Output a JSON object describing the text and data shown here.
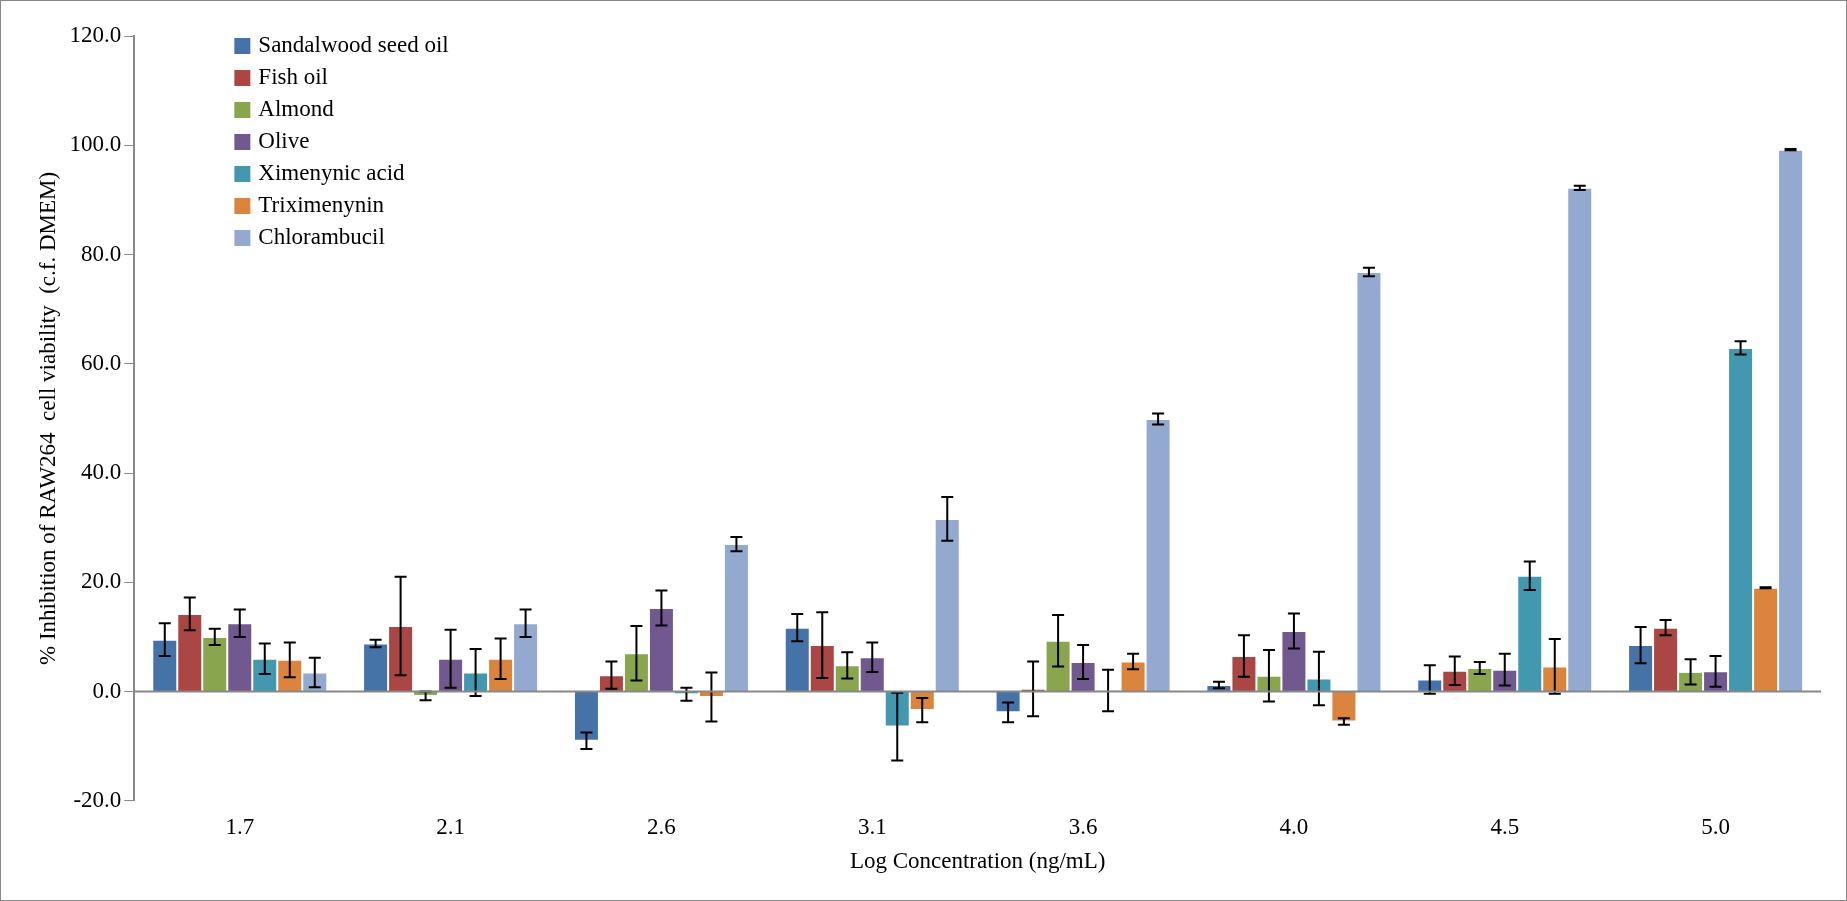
{
  "chart_data": {
    "type": "bar",
    "xlabel": "Log Concentration (ng/mL)",
    "ylabel": "% Inhibition of RAW264  cell viability  (c.f. DMEM)",
    "categories": [
      "1.7",
      "2.1",
      "2.6",
      "3.1",
      "3.6",
      "4.0",
      "4.5",
      "5.0"
    ],
    "ylim": [
      -20,
      120
    ],
    "yticks": [
      {
        "value": -20,
        "label": "-20.0"
      },
      {
        "value": 0,
        "label": "0.0"
      },
      {
        "value": 20,
        "label": "20.0"
      },
      {
        "value": 40,
        "label": "40.0"
      },
      {
        "value": 60,
        "label": "60.0"
      },
      {
        "value": 80,
        "label": "80.0"
      },
      {
        "value": 100,
        "label": "100.0"
      },
      {
        "value": 120,
        "label": "120.0"
      }
    ],
    "grid": false,
    "legend": "top left",
    "ref_lines": [
      {
        "axis": "y",
        "value": 0,
        "color": "#888888"
      }
    ],
    "series": [
      {
        "name": "Sandalwood seed oil",
        "color": "#4572a7",
        "values": [
          9.5,
          8.8,
          -9,
          11.7,
          -3.8,
          1.2,
          2.2,
          8.5
        ],
        "errors": [
          3,
          0.7,
          1.5,
          2.5,
          1.8,
          0.6,
          2.6,
          3.3
        ]
      },
      {
        "name": "Fish oil",
        "color": "#aa4643",
        "values": [
          14.2,
          12,
          3,
          8.5,
          0.5,
          6.5,
          3.8,
          11.7
        ],
        "errors": [
          3,
          9,
          2.5,
          6,
          5,
          3.8,
          2.6,
          1.4
        ]
      },
      {
        "name": "Almond",
        "color": "#89a54e",
        "values": [
          10,
          -0.8,
          7,
          4.8,
          9.3,
          2.9,
          4.3,
          3.6
        ],
        "errors": [
          1.5,
          0.8,
          5,
          2.4,
          4.7,
          4.7,
          1.1,
          2.3
        ]
      },
      {
        "name": "Olive",
        "color": "#71588f",
        "values": [
          12.5,
          6,
          15.3,
          6.3,
          5.4,
          11.1,
          4,
          3.7
        ],
        "errors": [
          2.5,
          5.3,
          3.2,
          2.7,
          3.1,
          3.2,
          2.9,
          2.8
        ]
      },
      {
        "name": "Ximenynic acid",
        "color": "#4198af",
        "values": [
          6,
          3.5,
          -0.5,
          -6.4,
          0.2,
          2.4,
          21.2,
          62.9
        ],
        "errors": [
          2.8,
          4.3,
          1.2,
          6.2,
          3.8,
          4.9,
          2.6,
          1.2
        ]
      },
      {
        "name": "Triximenynin",
        "color": "#db843d",
        "values": [
          5.8,
          6,
          -1,
          -3.4,
          5.5,
          -5.5,
          4.6,
          19
        ],
        "errors": [
          3.2,
          3.7,
          4.5,
          2.2,
          1.4,
          0.6,
          5,
          0.1
        ]
      },
      {
        "name": "Chlorambucil",
        "color": "#93a9cf",
        "values": [
          3.5,
          12.5,
          27,
          31.6,
          49.9,
          76.8,
          92.2,
          99.2
        ],
        "errors": [
          2.7,
          2.5,
          1.3,
          4,
          1,
          0.8,
          0.4,
          0.1
        ]
      }
    ]
  }
}
